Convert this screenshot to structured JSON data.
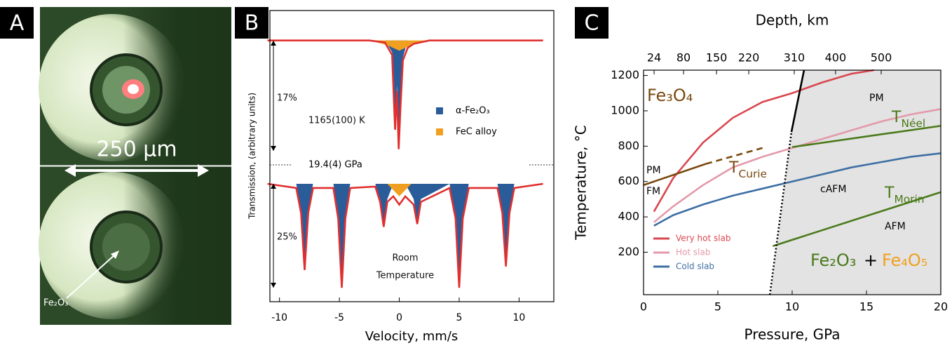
{
  "panel_a": {
    "label": "A",
    "scale_bar": "250 μm",
    "arrow_label": "Fe₂O₃"
  },
  "chart_data": [
    {
      "type": "line",
      "panel_label": "B",
      "x_label": "Velocity, mm/s",
      "y_label": "Transmission, (arbitrary units)",
      "xlim": [
        -10.8,
        12.9
      ],
      "ylim": [
        0,
        105
      ],
      "xticks": [
        -10,
        -5,
        0,
        5,
        10
      ],
      "annotations": [
        "17%",
        "25%",
        "1165(100) K",
        "19.4(4) GPa",
        "Room",
        "Temperature"
      ],
      "series": [
        {
          "name": "α-Fe₂O₃",
          "color": "#2a5c9a",
          "fill": true,
          "x": [
            -1.2,
            -0.6,
            -0.35,
            -0.2,
            -0.05,
            0.1,
            0.3,
            0.7
          ],
          "values": [
            94.2,
            90,
            62,
            78,
            56,
            72,
            88,
            94.2
          ]
        },
        {
          "name": "FeC alloy",
          "color": "#f0a020",
          "fill": true,
          "x": [
            -2.5,
            -1,
            0,
            1,
            2.5
          ],
          "values": [
            94.2,
            92.5,
            90.5,
            92.5,
            94.2
          ]
        },
        {
          "color": "#e03030",
          "x": [
            -11,
            -2.5,
            -1.2,
            -0.6,
            -0.35,
            -0.2,
            -0.05,
            0.1,
            0.3,
            0.7,
            1.2,
            2.5,
            12
          ],
          "values": [
            94.2,
            94.2,
            93.5,
            89,
            62,
            76,
            55,
            70,
            87,
            91.5,
            93,
            94.2,
            94.2
          ]
        },
        {
          "color": "#2a5c9a",
          "fill": true,
          "x": [
            -11,
            -8.6,
            -8.2,
            -7.9,
            -7.6,
            -7.2,
            -5.5,
            -5.1,
            -4.8,
            -4.5,
            -4.1,
            -2,
            -1.6,
            -1.3,
            -1,
            -0.5,
            0.5,
            1.2,
            1.5,
            1.8,
            4.2,
            4.7,
            5.0,
            5.3,
            5.8,
            8.2,
            8.6,
            8.9,
            9.2,
            9.6,
            12
          ],
          "values": [
            42.5,
            42.5,
            33,
            12,
            33,
            42.5,
            42.5,
            31,
            6,
            31,
            42.5,
            42.5,
            37,
            28,
            37,
            42.5,
            42.5,
            37,
            29,
            37,
            42.5,
            31,
            6,
            31,
            42.5,
            42.5,
            33,
            13.5,
            33,
            42.5,
            42.5
          ]
        },
        {
          "color": "#f0a020",
          "fill": true,
          "x": [
            -1,
            0,
            1
          ],
          "values": [
            42.5,
            38,
            42.5
          ]
        },
        {
          "color": "#e03030",
          "x": [
            -11,
            -8.6,
            -8.2,
            -7.9,
            -7.6,
            -7.2,
            -5.5,
            -5.1,
            -4.8,
            -4.5,
            -4.1,
            -2,
            -1.6,
            -1.3,
            -1,
            -0.5,
            0,
            0.5,
            1.2,
            1.5,
            1.8,
            4.2,
            4.7,
            5.0,
            5.3,
            5.8,
            8.2,
            8.6,
            8.9,
            9.2,
            9.6,
            12
          ],
          "values": [
            42.5,
            41,
            32,
            11.4,
            32,
            41,
            41,
            30,
            5,
            30,
            41,
            41.5,
            36,
            27,
            36,
            38,
            35,
            38,
            35,
            28,
            36,
            41,
            30,
            5,
            30,
            41,
            41,
            32,
            12.7,
            32,
            41,
            42.5
          ]
        }
      ]
    },
    {
      "type": "line",
      "panel_label": "C",
      "x_label": "Pressure, GPa",
      "y_label": "Temperature, °C",
      "x2_label": "Depth, km",
      "xlim": [
        0,
        20
      ],
      "ylim": [
        -40,
        1230
      ],
      "xticks": [
        0,
        5,
        10,
        15,
        20
      ],
      "yticks": [
        200,
        400,
        600,
        800,
        1000,
        1200
      ],
      "x2ticks": [
        24,
        80,
        150,
        220,
        310,
        400,
        500
      ],
      "x2ticks_pressure": [
        0.71,
        2.69,
        4.91,
        7.08,
        10.14,
        12.92,
        15.99
      ],
      "annotations": [
        "Fe₃O₄",
        "PM",
        "PM",
        "FM",
        "cAFM",
        "AFM",
        {
          "main": "T",
          "sub": "Néel"
        },
        {
          "main": "T",
          "sub": "Curie"
        },
        {
          "main": "T",
          "sub": "Morin"
        },
        "Fe₂O₃",
        "+",
        "Fe₄O₅"
      ],
      "series": [
        {
          "name": "Very hot slab",
          "color": "#d9474f",
          "x": [
            0.7,
            2,
            4,
            6,
            8,
            10,
            12,
            14,
            15.5
          ],
          "values": [
            430,
            620,
            820,
            960,
            1050,
            1100,
            1160,
            1210,
            1230
          ]
        },
        {
          "name": "Hot slab",
          "color": "#e39aaa",
          "x": [
            0.7,
            2,
            4,
            6,
            8,
            10,
            12,
            14,
            16,
            18,
            20
          ],
          "values": [
            370,
            460,
            580,
            680,
            740,
            790,
            840,
            890,
            940,
            980,
            1010
          ]
        },
        {
          "name": "Cold slab",
          "color": "#3d6fa3",
          "x": [
            0.7,
            2,
            4,
            6,
            8,
            10,
            12,
            14,
            16,
            18,
            20
          ],
          "values": [
            350,
            410,
            470,
            520,
            560,
            600,
            640,
            680,
            710,
            740,
            760
          ]
        },
        {
          "color": "#7a4a10",
          "x": [
            0,
            4.2
          ],
          "values": [
            580,
            700
          ]
        },
        {
          "color": "#7a4a10",
          "style": "dashed",
          "x": [
            4.2,
            8
          ],
          "values": [
            700,
            790
          ]
        },
        {
          "color": "#4a7a1a",
          "x": [
            10,
            20
          ],
          "values": [
            795,
            915
          ]
        },
        {
          "color": "#4a7a1a",
          "x": [
            8.7,
            20
          ],
          "values": [
            235,
            540
          ]
        },
        {
          "color": "#000000",
          "style": "dotted",
          "x": [
            8.5,
            9.95
          ],
          "values": [
            -40,
            880
          ]
        },
        {
          "color": "#000000",
          "x": [
            9.95,
            10.8
          ],
          "values": [
            880,
            1230
          ]
        }
      ]
    }
  ]
}
